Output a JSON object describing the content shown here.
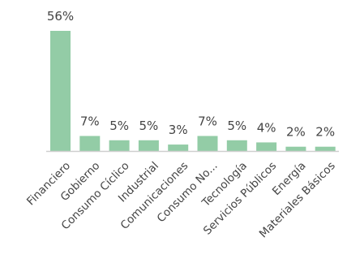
{
  "chart_data": {
    "type": "bar",
    "categories": [
      "Financiero",
      "Gobierno",
      "Consumo Cíclico",
      "Industrial",
      "Comunicaciones",
      "Consumo No...",
      "Tecnología",
      "Servicios Públicos",
      "Energía",
      "Materiales Básicos"
    ],
    "values": [
      56,
      7,
      5,
      5,
      3,
      7,
      5,
      4,
      2,
      2
    ],
    "data_labels": [
      "56%",
      "7%",
      "5%",
      "5%",
      "3%",
      "7%",
      "5%",
      "4%",
      "2%",
      "2%"
    ],
    "ylim": [
      0,
      56
    ],
    "grid": false,
    "bar_color": "#93cca6",
    "axis_color": "#cfcfcf"
  }
}
